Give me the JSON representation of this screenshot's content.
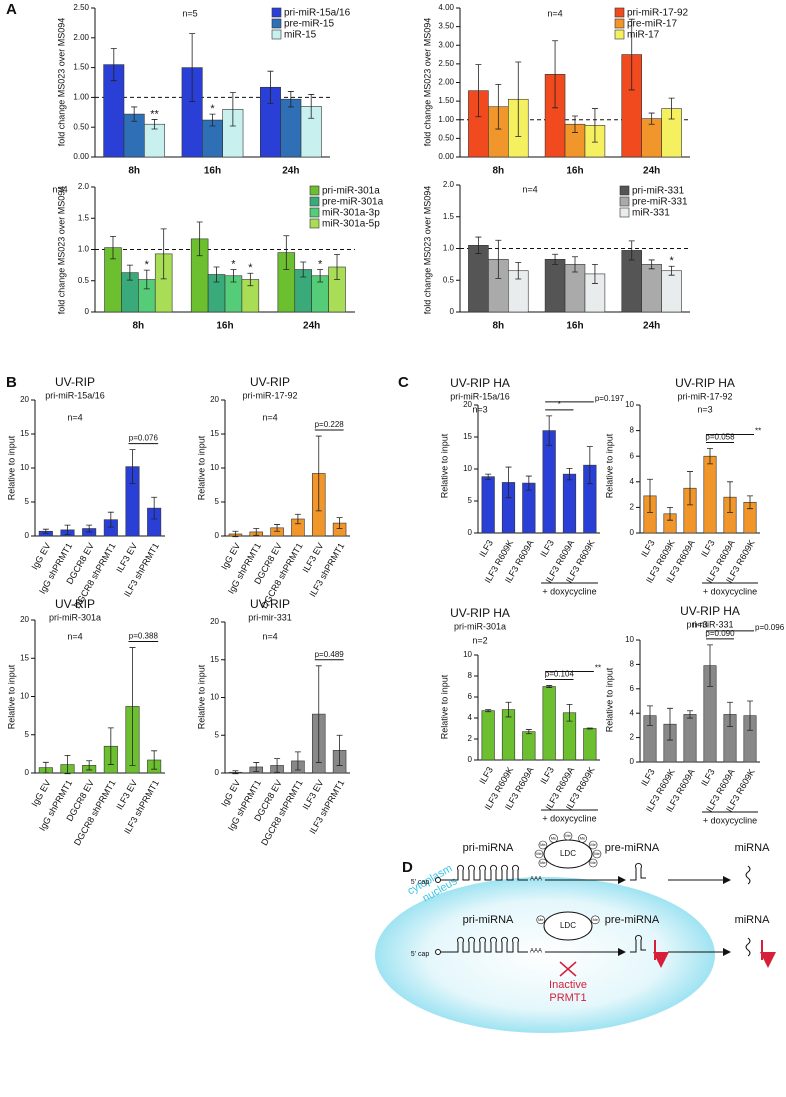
{
  "panels": [
    "A",
    "B",
    "C",
    "D"
  ],
  "chart_data": [
    {
      "type": "bar",
      "annotation": "n=5",
      "ylabel": "fold change MS023 over MS094",
      "categories": [
        "8h",
        "16h",
        "24h"
      ],
      "ylim": [
        0,
        2.5
      ],
      "yticks": [
        {
          "value": 0,
          "label": "0.00"
        },
        {
          "value": 0.5,
          "label": "0.50"
        },
        {
          "value": 1,
          "label": "1.00"
        },
        {
          "value": 1.5,
          "label": "1.50"
        },
        {
          "value": 2,
          "label": "2.00"
        },
        {
          "value": 2.5,
          "label": "2.50"
        }
      ],
      "reference_line": 1,
      "series": [
        {
          "name": "pri-miR-15a/16",
          "color": "#2a3fd6",
          "values": [
            1.55,
            1.5,
            1.17
          ],
          "errors": [
            0.27,
            0.57,
            0.27
          ]
        },
        {
          "name": "pre-miR-15",
          "color": "#2e6fb5",
          "values": [
            0.72,
            0.62,
            0.97
          ],
          "errors": [
            0.12,
            0.1,
            0.13
          ],
          "significance": [
            null,
            "*",
            null
          ]
        },
        {
          "name": "miR-15",
          "color": "#c8f0ee",
          "values": [
            0.55,
            0.8,
            0.85
          ],
          "errors": [
            0.08,
            0.28,
            0.2
          ],
          "significance": [
            "**",
            null,
            null
          ]
        }
      ]
    },
    {
      "type": "bar",
      "annotation": "n=4",
      "ylabel": "fold change MS023 over MS094",
      "categories": [
        "8h",
        "16h",
        "24h"
      ],
      "ylim": [
        0,
        4
      ],
      "yticks": [
        {
          "value": 0,
          "label": "0.00"
        },
        {
          "value": 0.5,
          "label": "0.50"
        },
        {
          "value": 1,
          "label": "1.00"
        },
        {
          "value": 1.5,
          "label": "1.50"
        },
        {
          "value": 2,
          "label": "2.00"
        },
        {
          "value": 2.5,
          "label": "2.50"
        },
        {
          "value": 3,
          "label": "3.00"
        },
        {
          "value": 3.5,
          "label": "3.50"
        },
        {
          "value": 4,
          "label": "4.00"
        }
      ],
      "reference_line": 1,
      "series": [
        {
          "name": "pri-miR-17-92",
          "color": "#f04a1e",
          "values": [
            1.78,
            2.22,
            2.75
          ],
          "errors": [
            0.7,
            0.9,
            0.95
          ]
        },
        {
          "name": "pre-miR-17",
          "color": "#f0962a",
          "values": [
            1.35,
            0.88,
            1.03
          ],
          "errors": [
            0.6,
            0.22,
            0.15
          ]
        },
        {
          "name": "miR-17",
          "color": "#f5f060",
          "values": [
            1.55,
            0.85,
            1.3
          ],
          "errors": [
            1.0,
            0.45,
            0.28
          ]
        }
      ]
    },
    {
      "type": "bar",
      "annotation": "n=4",
      "ylabel": "fold change MS023 over MS094",
      "categories": [
        "8h",
        "16h",
        "24h"
      ],
      "ylim": [
        0,
        2
      ],
      "yticks": [
        0,
        0.5,
        {
          "value": 1,
          "label": "1.0"
        },
        1.5,
        {
          "value": 2,
          "label": "2.0"
        }
      ],
      "reference_line": 1,
      "series": [
        {
          "name": "pri-miR-301a",
          "color": "#6cbf2e",
          "values": [
            1.03,
            1.17,
            0.95
          ],
          "errors": [
            0.18,
            0.27,
            0.27
          ]
        },
        {
          "name": "pre-miR-301a",
          "color": "#3aaa7a",
          "values": [
            0.63,
            0.6,
            0.68
          ],
          "errors": [
            0.12,
            0.12,
            0.12
          ]
        },
        {
          "name": "miR-301a-3p",
          "color": "#55cc77",
          "values": [
            0.52,
            0.58,
            0.58
          ],
          "errors": [
            0.15,
            0.1,
            0.1
          ],
          "significance": [
            "*",
            "*",
            "*"
          ]
        },
        {
          "name": "miR-301a-5p",
          "color": "#a8dd55",
          "values": [
            0.93,
            0.52,
            0.72
          ],
          "errors": [
            0.4,
            0.1,
            0.2
          ],
          "significance": [
            null,
            "*",
            null
          ]
        }
      ]
    },
    {
      "type": "bar",
      "annotation": "n=4",
      "ylabel": "fold change MS023 over MS094",
      "categories": [
        "8h",
        "16h",
        "24h"
      ],
      "ylim": [
        0,
        2
      ],
      "yticks": [
        0,
        0.5,
        {
          "value": 1,
          "label": "1.0"
        },
        1.5,
        {
          "value": 2,
          "label": "2.0"
        }
      ],
      "reference_line": 1,
      "series": [
        {
          "name": "pri-miR-331",
          "color": "#555555",
          "values": [
            1.05,
            0.83,
            0.97
          ],
          "errors": [
            0.13,
            0.08,
            0.15
          ]
        },
        {
          "name": "pre-miR-331",
          "color": "#aaaaaa",
          "values": [
            0.83,
            0.75,
            0.75
          ],
          "errors": [
            0.3,
            0.12,
            0.07
          ]
        },
        {
          "name": "miR-331",
          "color": "#e8ecec",
          "values": [
            0.65,
            0.6,
            0.65
          ],
          "errors": [
            0.13,
            0.15,
            0.07
          ],
          "significance": [
            null,
            null,
            "*"
          ]
        }
      ]
    },
    {
      "type": "bar",
      "title": "UV-RIP",
      "subtitle": "pri-miR-15a/16",
      "annotation": "n=4",
      "ylabel": "Relative to input",
      "categories": [
        "IgG EV",
        "IgG shPRMT1",
        "DGCR8 EV",
        "DGCR8 shPRMT1",
        "ILF3 EV",
        "ILF3 shPRMT1"
      ],
      "ylim": [
        0,
        20
      ],
      "yticks": [
        0,
        5,
        10,
        15,
        20
      ],
      "color": "#2a3fd6",
      "values": [
        0.7,
        0.9,
        1.1,
        2.4,
        10.2,
        4.1
      ],
      "errors": [
        0.3,
        0.7,
        0.5,
        1.1,
        2.5,
        1.6
      ],
      "brackets": [
        {
          "from": 4,
          "to": 5,
          "label": "p=0.076"
        }
      ]
    },
    {
      "type": "bar",
      "title": "UV-RIP",
      "subtitle": "pri-miR-17-92",
      "annotation": "n=4",
      "ylabel": "Relative to input",
      "categories": [
        "IgG EV",
        "IgG shPRMT1",
        "DGCR8 EV",
        "DGCR8 shPRMT1",
        "ILF3 EV",
        "ILF3 shPRMT1"
      ],
      "ylim": [
        0,
        20
      ],
      "yticks": [
        0,
        5,
        10,
        15,
        20
      ],
      "color": "#f0962a",
      "values": [
        0.3,
        0.6,
        1.2,
        2.5,
        9.2,
        1.9
      ],
      "errors": [
        0.4,
        0.5,
        0.5,
        0.7,
        5.5,
        0.8
      ],
      "brackets": [
        {
          "from": 4,
          "to": 5,
          "label": "p=0.228"
        }
      ]
    },
    {
      "type": "bar",
      "title": "UV-RIP",
      "subtitle": "pri-miR-301a",
      "annotation": "n=4",
      "ylabel": "Relative to input",
      "categories": [
        "IgG EV",
        "IgG shPRMT1",
        "DGCR8 EV",
        "DGCR8 shPRMT1",
        "ILF3 EV",
        "ILF3 shPRMT1"
      ],
      "ylim": [
        0,
        20
      ],
      "yticks": [
        0,
        5,
        10,
        15,
        20
      ],
      "color": "#6cbf2e",
      "values": [
        0.7,
        1.1,
        1.0,
        3.5,
        8.7,
        1.7
      ],
      "errors": [
        0.7,
        1.2,
        0.6,
        2.4,
        7.7,
        1.2
      ],
      "brackets": [
        {
          "from": 4,
          "to": 5,
          "label": "p=0.388"
        }
      ]
    },
    {
      "type": "bar",
      "title": "UV-RIP",
      "subtitle": "pri-mir-331",
      "annotation": "n=4",
      "ylabel": "Relative to input",
      "categories": [
        "IgG EV",
        "IgG shPRMT1",
        "DGCR8 EV",
        "DGCR8 shPRMT1",
        "ILF3 EV",
        "ILF3 shPRMT1"
      ],
      "ylim": [
        0,
        20
      ],
      "yticks": [
        0,
        5,
        10,
        15,
        20
      ],
      "color": "#888888",
      "values": [
        0.1,
        0.8,
        1.0,
        1.6,
        7.8,
        3.0
      ],
      "errors": [
        0.2,
        0.6,
        0.9,
        1.2,
        6.4,
        2.0
      ],
      "brackets": [
        {
          "from": 4,
          "to": 5,
          "label": "p=0.489"
        }
      ]
    },
    {
      "type": "bar",
      "title": "UV-RIP HA",
      "subtitle": "pri-miR-15a/16",
      "annotation": "n=3",
      "ylabel": "Relative to input",
      "categories": [
        "ILF3",
        "ILF3 R609K",
        "ILF3 R609A",
        "ILF3",
        "ILF3 R609A",
        "ILF3 R609K"
      ],
      "group_label": "+ doxycycline",
      "ylim": [
        0,
        20
      ],
      "yticks": [
        0,
        5,
        10,
        15,
        20
      ],
      "color": "#2a3fd6",
      "values": [
        8.8,
        7.9,
        7.8,
        16.0,
        9.2,
        10.6
      ],
      "errors": [
        0.4,
        2.4,
        1.1,
        2.3,
        0.9,
        2.9
      ],
      "brackets": [
        {
          "from": 3,
          "to": 4,
          "label": "*"
        },
        {
          "from": 3,
          "to": 5,
          "label": "p=0.197"
        }
      ]
    },
    {
      "type": "bar",
      "title": "UV-RIP HA",
      "subtitle": "pri-miR-17-92",
      "annotation": "n=3",
      "ylabel": "Relative to input",
      "categories": [
        "ILF3",
        "ILF3 R609K",
        "ILF3 R609A",
        "ILF3",
        "ILF3 R609A",
        "ILF3 R609K"
      ],
      "group_label": "+ doxycycline",
      "ylim": [
        0,
        10
      ],
      "yticks": [
        0,
        2,
        4,
        6,
        8,
        10
      ],
      "color": "#f0962a",
      "values": [
        2.9,
        1.5,
        3.5,
        6.0,
        2.8,
        2.4
      ],
      "errors": [
        1.3,
        0.5,
        1.3,
        0.6,
        1.2,
        0.5
      ],
      "brackets": [
        {
          "from": 3,
          "to": 4,
          "label": "p=0.058"
        },
        {
          "from": 3,
          "to": 5,
          "label": "**"
        }
      ]
    },
    {
      "type": "bar",
      "title": "UV-RIP HA",
      "subtitle": "pri-miR-301a",
      "annotation": "n=2",
      "ylabel": "Relative to input",
      "categories": [
        "ILF3",
        "ILF3 R609K",
        "ILF3 R609A",
        "ILF3",
        "ILF3 R609A",
        "ILF3 R609K"
      ],
      "group_label": "+ doxycycline",
      "ylim": [
        0,
        10
      ],
      "yticks": [
        0,
        2,
        4,
        6,
        8,
        10
      ],
      "color": "#6cbf2e",
      "values": [
        4.7,
        4.8,
        2.7,
        7.0,
        4.5,
        3.0
      ],
      "errors": [
        0.1,
        0.7,
        0.2,
        0.1,
        0.8,
        0.05
      ],
      "brackets": [
        {
          "from": 3,
          "to": 4,
          "label": "p=0.104"
        },
        {
          "from": 3,
          "to": 5,
          "label": "**"
        }
      ]
    },
    {
      "type": "bar",
      "title": "UV-RIP HA",
      "subtitle": "pri-miR-331",
      "annotation": "n=3",
      "ylabel": "Relative to input",
      "categories": [
        "ILF3",
        "ILF3 R609K",
        "ILF3 R609A",
        "ILF3",
        "ILF3 R609A",
        "ILF3 R609K"
      ],
      "group_label": "+ doxycycline",
      "ylim": [
        0,
        10
      ],
      "yticks": [
        0,
        2,
        4,
        6,
        8,
        10
      ],
      "color": "#888888",
      "values": [
        3.8,
        3.1,
        3.9,
        7.9,
        3.9,
        3.8
      ],
      "errors": [
        0.8,
        1.3,
        0.3,
        1.7,
        1.0,
        1.2
      ],
      "brackets": [
        {
          "from": 3,
          "to": 4,
          "label": "p=0.090"
        },
        {
          "from": 3,
          "to": 5,
          "label": "p=0.096"
        }
      ]
    }
  ],
  "diagram": {
    "cytoplasm": "cytoplasm",
    "nucleus": "nucleus",
    "methyl": "Me",
    "rows": [
      {
        "pri": "pri-miRNA",
        "complex": "LDC",
        "pre": "pre-miRNA",
        "mature": "miRNA",
        "cap": "5' cap",
        "tail": "AAA"
      },
      {
        "pri": "pri-miRNA",
        "complex": "LDC",
        "pre": "pre-miRNA",
        "mature": "miRNA",
        "cap": "5' cap",
        "tail": "AAA"
      }
    ],
    "inhibitor": [
      "Inactive",
      "PRMT1"
    ]
  }
}
